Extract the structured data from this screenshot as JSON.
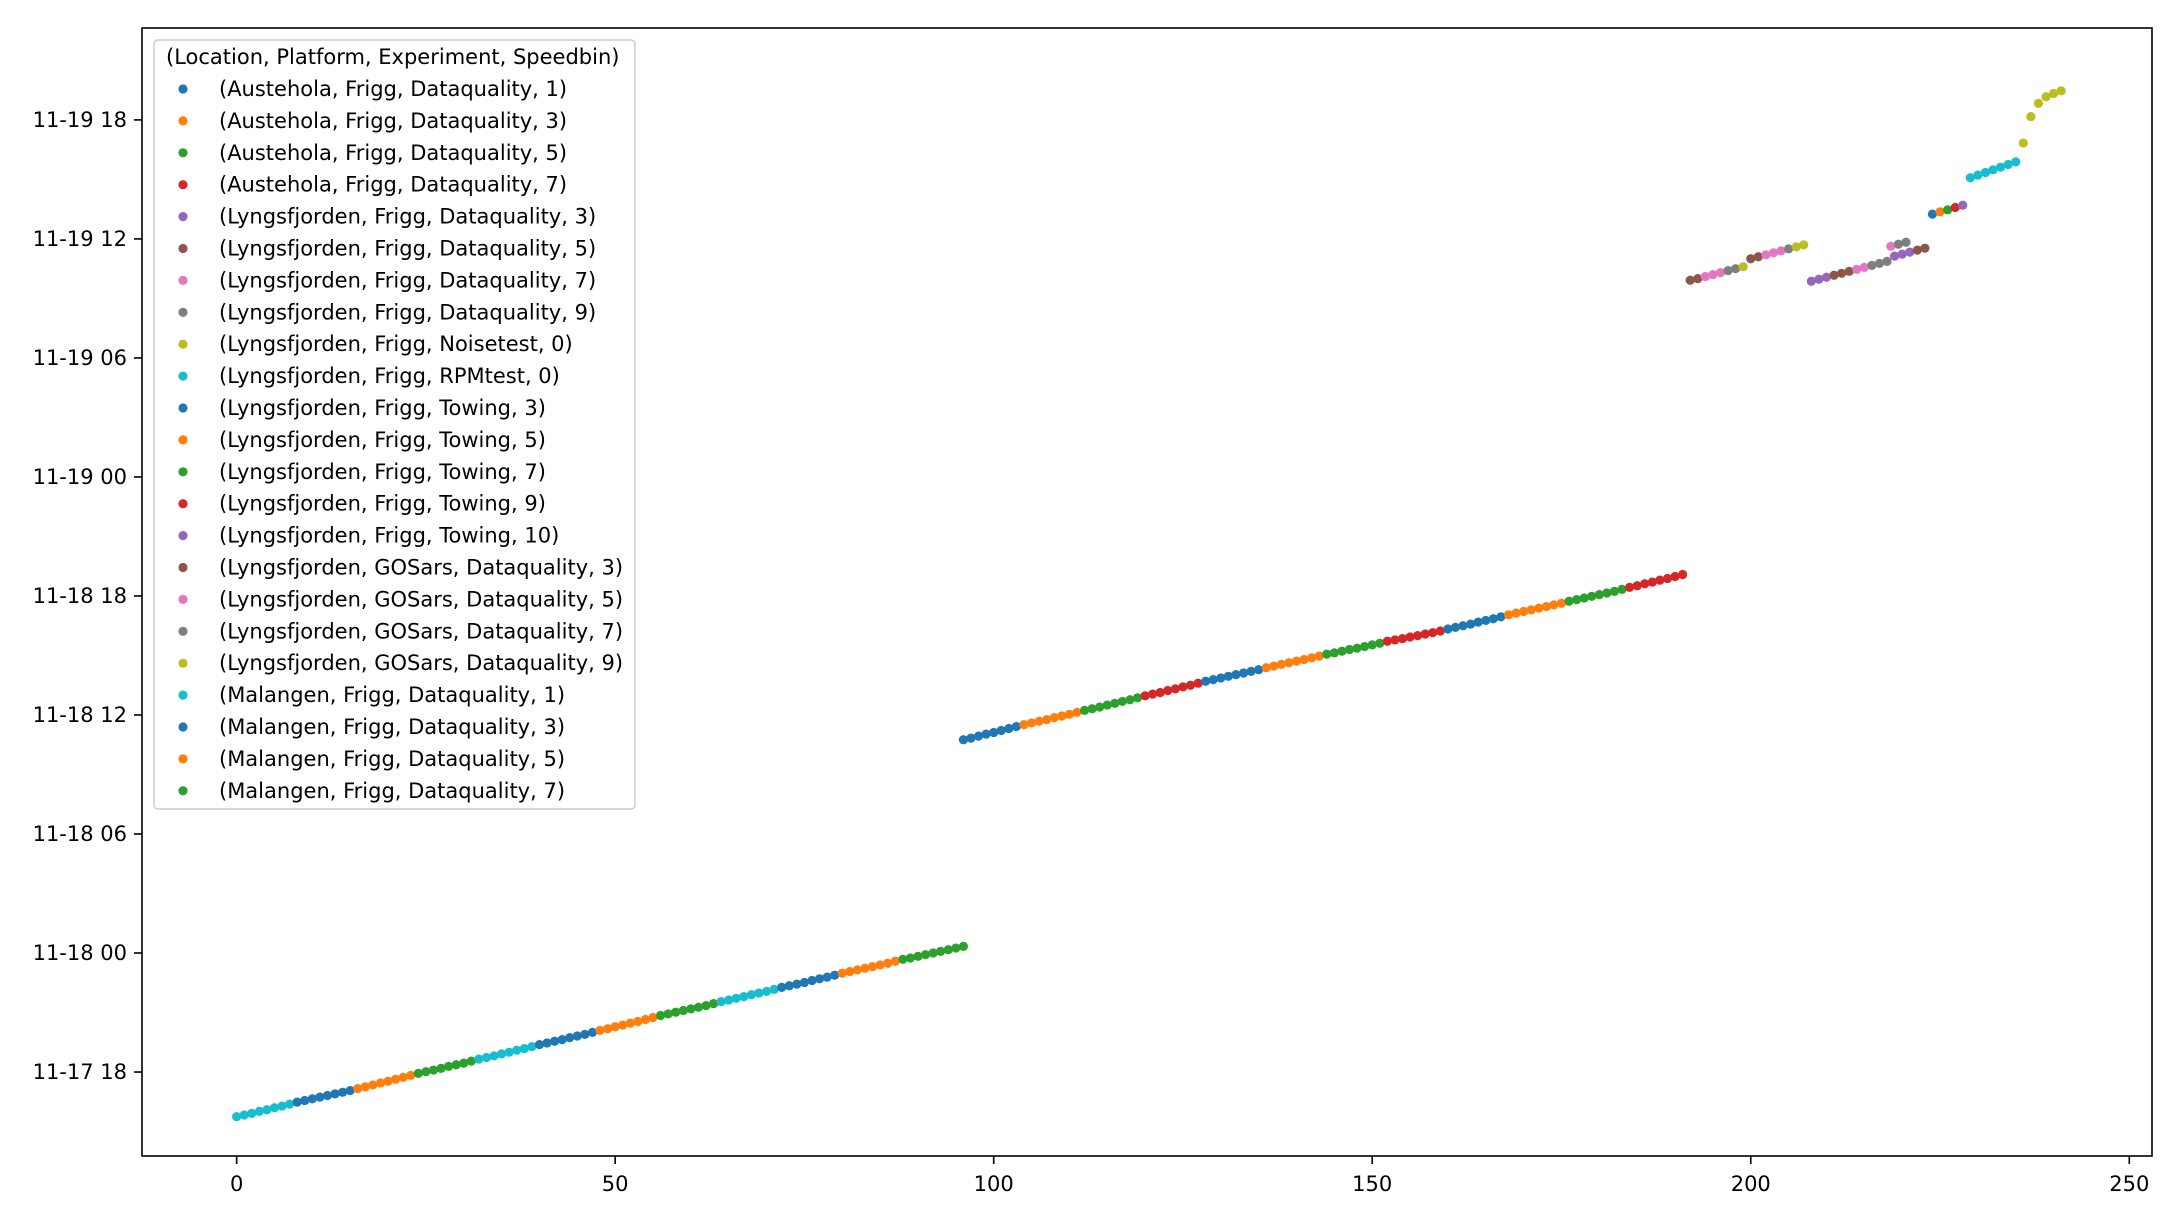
{
  "chart_data": {
    "type": "scatter",
    "title": "",
    "xlabel": "",
    "ylabel": "",
    "xlim": [
      -12.5,
      253
    ],
    "ylim": [
      "2021-11-17 13:46",
      "2021-11-19 22:38"
    ],
    "x_ticks": [
      0,
      50,
      100,
      150,
      200,
      250
    ],
    "y_ticks": [
      "11-17 18",
      "11-18 00",
      "11-18 06",
      "11-18 12",
      "11-18 18",
      "11-19 00",
      "11-19 06",
      "11-19 12",
      "11-19 18"
    ],
    "y_tick_values": [
      "2021-11-17 18:00",
      "2021-11-18 00:00",
      "2021-11-18 06:00",
      "2021-11-18 12:00",
      "2021-11-18 18:00",
      "2021-11-19 00:00",
      "2021-11-19 06:00",
      "2021-11-19 12:00",
      "2021-11-19 18:00"
    ],
    "grid": false,
    "marker": "point",
    "legend": {
      "position": "top-left",
      "title": "(Location, Platform, Experiment, Speedbin)"
    },
    "colors": {
      "blue": "#1f77b4",
      "orange": "#ff7f0e",
      "green": "#2ca02c",
      "red": "#d62728",
      "purple": "#9467bd",
      "brown": "#8c564b",
      "pink": "#e377c2",
      "gray": "#7f7f7f",
      "olive": "#bcbd22",
      "cyan": "#17becf"
    },
    "series": [
      {
        "name": "(Austehola, Frigg, Dataquality, 1)",
        "color": "#1f77b4",
        "points": []
      },
      {
        "name": "(Austehola, Frigg, Dataquality, 3)",
        "color": "#ff7f0e",
        "points": []
      },
      {
        "name": "(Austehola, Frigg, Dataquality, 5)",
        "color": "#2ca02c",
        "points": []
      },
      {
        "name": "(Austehola, Frigg, Dataquality, 7)",
        "color": "#d62728",
        "points": []
      },
      {
        "name": "(Lyngsfjorden, Frigg, Dataquality, 3)",
        "color": "#9467bd",
        "points": [
          [
            "2021-11-19 09:52",
            208
          ],
          [
            "2021-11-19 09:58",
            209
          ],
          [
            "2021-11-19 10:04",
            210
          ]
        ]
      },
      {
        "name": "(Lyngsfjorden, Frigg, Dataquality, 5)",
        "color": "#8c564b",
        "points": [
          [
            "2021-11-19 10:10",
            211
          ],
          [
            "2021-11-19 10:16",
            212
          ],
          [
            "2021-11-19 10:22",
            213
          ]
        ]
      },
      {
        "name": "(Lyngsfjorden, Frigg, Dataquality, 7)",
        "color": "#e377c2",
        "points": [
          [
            "2021-11-19 10:28",
            214
          ],
          [
            "2021-11-19 10:34",
            215
          ]
        ]
      },
      {
        "name": "(Lyngsfjorden, Frigg, Dataquality, 9)",
        "color": "#7f7f7f",
        "points": [
          [
            "2021-11-19 10:40",
            216
          ],
          [
            "2021-11-19 10:46",
            217
          ],
          [
            "2021-11-19 10:52",
            218
          ]
        ]
      },
      {
        "name": "(Lyngsfjorden, Frigg, Noisetest, 0)",
        "color": "#bcbd22",
        "points": [
          [
            "2021-11-19 16:50",
            236
          ],
          [
            "2021-11-19 18:10",
            237
          ],
          [
            "2021-11-19 18:50",
            238
          ],
          [
            "2021-11-19 19:10",
            239
          ],
          [
            "2021-11-19 19:20",
            240
          ],
          [
            "2021-11-19 19:28",
            241
          ]
        ]
      },
      {
        "name": "(Lyngsfjorden, Frigg, RPMtest, 0)",
        "color": "#17becf",
        "points": [
          [
            "2021-11-19 15:05",
            229
          ],
          [
            "2021-11-19 15:13",
            230
          ],
          [
            "2021-11-19 15:21",
            231
          ],
          [
            "2021-11-19 15:29",
            232
          ],
          [
            "2021-11-19 15:37",
            233
          ],
          [
            "2021-11-19 15:45",
            234
          ],
          [
            "2021-11-19 15:53",
            235
          ]
        ]
      },
      {
        "name": "(Lyngsfjorden, Frigg, Towing, 3)",
        "color": "#1f77b4",
        "points": [
          [
            "2021-11-19 13:15",
            224
          ]
        ]
      },
      {
        "name": "(Lyngsfjorden, Frigg, Towing, 5)",
        "color": "#ff7f0e",
        "points": [
          [
            "2021-11-19 13:22",
            225
          ]
        ]
      },
      {
        "name": "(Lyngsfjorden, Frigg, Towing, 7)",
        "color": "#2ca02c",
        "points": [
          [
            "2021-11-19 13:28",
            226
          ]
        ]
      },
      {
        "name": "(Lyngsfjorden, Frigg, Towing, 9)",
        "color": "#d62728",
        "points": [
          [
            "2021-11-19 13:35",
            227
          ]
        ]
      },
      {
        "name": "(Lyngsfjorden, Frigg, Towing, 10)",
        "color": "#9467bd",
        "points": [
          [
            "2021-11-19 13:42",
            228
          ],
          [
            "2021-11-19 11:08",
            219
          ],
          [
            "2021-11-19 11:14",
            220
          ],
          [
            "2021-11-19 11:20",
            221
          ]
        ]
      },
      {
        "name": "(Lyngsfjorden, GOSars, Dataquality, 3)",
        "color": "#8c564b",
        "points": [
          [
            "2021-11-19 09:55",
            192
          ],
          [
            "2021-11-19 10:00",
            193
          ],
          [
            "2021-11-19 11:00",
            200
          ],
          [
            "2021-11-19 11:06",
            201
          ],
          [
            "2021-11-19 11:26",
            222
          ],
          [
            "2021-11-19 11:32",
            223
          ]
        ]
      },
      {
        "name": "(Lyngsfjorden, GOSars, Dataquality, 5)",
        "color": "#e377c2",
        "points": [
          [
            "2021-11-19 10:06",
            194
          ],
          [
            "2021-11-19 10:12",
            195
          ],
          [
            "2021-11-19 10:18",
            196
          ],
          [
            "2021-11-19 11:12",
            202
          ],
          [
            "2021-11-19 11:18",
            203
          ],
          [
            "2021-11-19 11:24",
            204
          ],
          [
            "2021-11-19 11:38",
            218.5
          ]
        ]
      },
      {
        "name": "(Lyngsfjorden, GOSars, Dataquality, 7)",
        "color": "#7f7f7f",
        "points": [
          [
            "2021-11-19 10:24",
            197
          ],
          [
            "2021-11-19 10:30",
            198
          ],
          [
            "2021-11-19 11:30",
            205
          ],
          [
            "2021-11-19 11:44",
            219.5
          ],
          [
            "2021-11-19 11:50",
            220.5
          ]
        ]
      },
      {
        "name": "(Lyngsfjorden, GOSars, Dataquality, 9)",
        "color": "#bcbd22",
        "points": [
          [
            "2021-11-19 10:36",
            199
          ],
          [
            "2021-11-19 11:36",
            206
          ],
          [
            "2021-11-19 11:42",
            207
          ]
        ]
      },
      {
        "name": "(Malangen, Frigg, Dataquality, 1)",
        "color": "#17becf",
        "points": []
      },
      {
        "name": "(Malangen, Frigg, Dataquality, 3)",
        "color": "#1f77b4",
        "points": []
      },
      {
        "name": "(Malangen, Frigg, Dataquality, 5)",
        "color": "#ff7f0e",
        "points": []
      },
      {
        "name": "(Malangen, Frigg, Dataquality, 7)",
        "color": "#2ca02c",
        "points": []
      }
    ],
    "runs": [
      {
        "color": "#17becf",
        "x_start": 0,
        "x_end": 7,
        "y_start": "2021-11-17 15:45",
        "y_end": "2021-11-17 16:23"
      },
      {
        "color": "#1f77b4",
        "x_start": 8,
        "x_end": 15,
        "y_start": "2021-11-17 16:29",
        "y_end": "2021-11-17 17:04"
      },
      {
        "color": "#ff7f0e",
        "x_start": 16,
        "x_end": 23,
        "y_start": "2021-11-17 17:10",
        "y_end": "2021-11-17 17:50"
      },
      {
        "color": "#2ca02c",
        "x_start": 24,
        "x_end": 31,
        "y_start": "2021-11-17 17:56",
        "y_end": "2021-11-17 18:33"
      },
      {
        "color": "#17becf",
        "x_start": 32,
        "x_end": 39,
        "y_start": "2021-11-17 18:39",
        "y_end": "2021-11-17 19:17"
      },
      {
        "color": "#1f77b4",
        "x_start": 40,
        "x_end": 47,
        "y_start": "2021-11-17 19:23",
        "y_end": "2021-11-17 20:00"
      },
      {
        "color": "#ff7f0e",
        "x_start": 48,
        "x_end": 55,
        "y_start": "2021-11-17 20:06",
        "y_end": "2021-11-17 20:45"
      },
      {
        "color": "#2ca02c",
        "x_start": 56,
        "x_end": 63,
        "y_start": "2021-11-17 20:51",
        "y_end": "2021-11-17 21:27"
      },
      {
        "color": "#17becf",
        "x_start": 64,
        "x_end": 71,
        "y_start": "2021-11-17 21:33",
        "y_end": "2021-11-17 22:10"
      },
      {
        "color": "#1f77b4",
        "x_start": 72,
        "x_end": 79,
        "y_start": "2021-11-17 22:16",
        "y_end": "2021-11-17 22:53"
      },
      {
        "color": "#ff7f0e",
        "x_start": 80,
        "x_end": 87,
        "y_start": "2021-11-17 22:59",
        "y_end": "2021-11-17 23:35"
      },
      {
        "color": "#2ca02c",
        "x_start": 88,
        "x_end": 96,
        "y_start": "2021-11-17 23:41",
        "y_end": "2021-11-18 00:20"
      },
      {
        "color": "#1f77b4",
        "x_start": 96,
        "x_end": 103,
        "y_start": "2021-11-18 10:45",
        "y_end": "2021-11-18 11:25"
      },
      {
        "color": "#ff7f0e",
        "x_start": 104,
        "x_end": 111,
        "y_start": "2021-11-18 11:31",
        "y_end": "2021-11-18 12:08"
      },
      {
        "color": "#2ca02c",
        "x_start": 112,
        "x_end": 119,
        "y_start": "2021-11-18 12:14",
        "y_end": "2021-11-18 12:52"
      },
      {
        "color": "#d62728",
        "x_start": 120,
        "x_end": 127,
        "y_start": "2021-11-18 12:58",
        "y_end": "2021-11-18 13:36"
      },
      {
        "color": "#1f77b4",
        "x_start": 128,
        "x_end": 135,
        "y_start": "2021-11-18 13:42",
        "y_end": "2021-11-18 14:17"
      },
      {
        "color": "#ff7f0e",
        "x_start": 136,
        "x_end": 143,
        "y_start": "2021-11-18 14:23",
        "y_end": "2021-11-18 14:58"
      },
      {
        "color": "#2ca02c",
        "x_start": 144,
        "x_end": 151,
        "y_start": "2021-11-18 15:04",
        "y_end": "2021-11-18 15:37"
      },
      {
        "color": "#d62728",
        "x_start": 152,
        "x_end": 159,
        "y_start": "2021-11-18 15:43",
        "y_end": "2021-11-18 16:14"
      },
      {
        "color": "#1f77b4",
        "x_start": 160,
        "x_end": 167,
        "y_start": "2021-11-18 16:20",
        "y_end": "2021-11-18 16:57"
      },
      {
        "color": "#ff7f0e",
        "x_start": 168,
        "x_end": 175,
        "y_start": "2021-11-18 17:03",
        "y_end": "2021-11-18 17:38"
      },
      {
        "color": "#2ca02c",
        "x_start": 176,
        "x_end": 183,
        "y_start": "2021-11-18 17:44",
        "y_end": "2021-11-18 18:20"
      },
      {
        "color": "#d62728",
        "x_start": 184,
        "x_end": 191,
        "y_start": "2021-11-18 18:26",
        "y_end": "2021-11-18 19:05"
      }
    ]
  }
}
